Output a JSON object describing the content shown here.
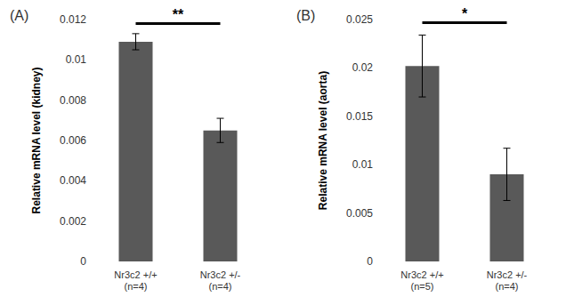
{
  "chart_data": [
    {
      "type": "bar",
      "title": "(A)",
      "y_label": "Relative mRNA level (kidney)",
      "categories": [
        "Nr3c2 +/+\n(n=4)",
        "Nr3c2 +/-\n(n=4)"
      ],
      "values": [
        0.0109,
        0.0065
      ],
      "errors": [
        0.0004,
        0.0006
      ],
      "color": "#595959",
      "ylim": [
        0,
        0.012
      ],
      "yticks": [
        0,
        0.002,
        0.004,
        0.006,
        0.008,
        0.01,
        0.012
      ],
      "grid": false,
      "significance": {
        "label": "**",
        "y": 0.0118
      }
    },
    {
      "type": "bar",
      "title": "(B)",
      "y_label": "Relative mRNA level (aorta)",
      "categories": [
        "Nr3c2 +/+\n(n=5)",
        "Nr3c2 +/-\n(n=4)"
      ],
      "values": [
        0.0202,
        0.009
      ],
      "errors": [
        0.0032,
        0.0027
      ],
      "color": "#595959",
      "ylim": [
        0,
        0.025
      ],
      "yticks": [
        0,
        0.005,
        0.01,
        0.015,
        0.02,
        0.025
      ],
      "grid": false,
      "significance": {
        "label": "*",
        "y": 0.0247
      }
    }
  ]
}
